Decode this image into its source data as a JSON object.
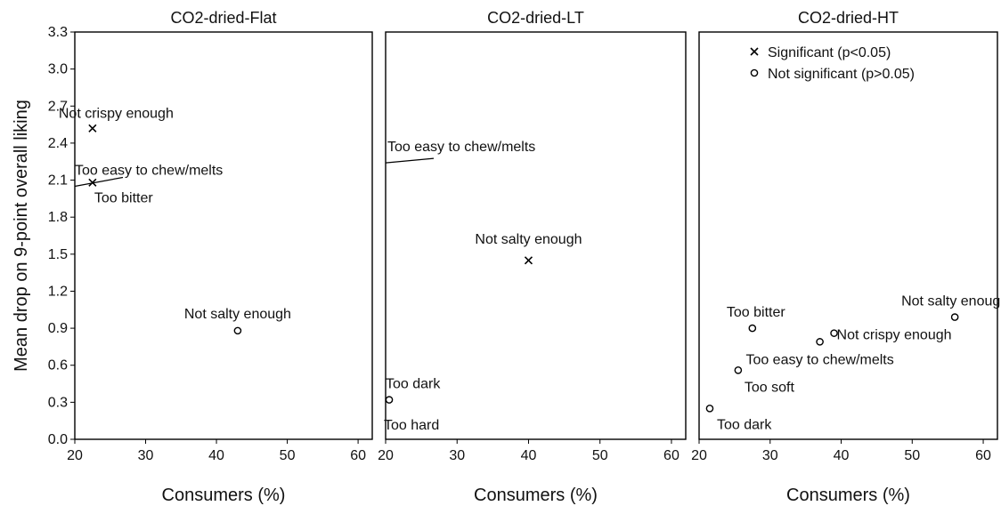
{
  "chart_data": {
    "type": "scatter",
    "ylabel": "Mean drop on 9-point overall liking",
    "ylim": [
      0,
      3.3
    ],
    "yticks": [
      0,
      0.3,
      0.6,
      0.9,
      1.2,
      1.5,
      1.8,
      2.1,
      2.4,
      2.7,
      3.0,
      3.3
    ],
    "ytick_labels": [
      "0.0",
      "0.3",
      "0.6",
      "0.9",
      "1.2",
      "1.5",
      "1.8",
      "2.1",
      "2.4",
      "2.7",
      "3.0",
      "3.3"
    ],
    "xlim": [
      20,
      62
    ],
    "xticks": [
      20,
      30,
      40,
      50,
      60
    ],
    "xtick_labels": [
      "20",
      "30",
      "40",
      "50",
      "60"
    ],
    "legend": {
      "placement": "top-left of third panel",
      "entries": [
        {
          "marker": "x",
          "label": "Significant (p<0.05)"
        },
        {
          "marker": "o",
          "label": "Not significant (p>0.05)"
        }
      ]
    },
    "panels": [
      {
        "title": "CO2-dried-Flat",
        "xlabel": "Consumers (%)",
        "points": [
          {
            "label": "Not crispy enough",
            "x": 22.5,
            "y": 2.52,
            "significant": true
          },
          {
            "label": "Too easy to chew/melts",
            "x": 20.0,
            "y": 2.05,
            "significant": false
          },
          {
            "label": "Too bitter",
            "x": 22.5,
            "y": 2.08,
            "significant": true
          },
          {
            "label": "Not salty enough",
            "x": 43.0,
            "y": 0.88,
            "significant": false
          }
        ]
      },
      {
        "title": "CO2-dried-LT",
        "xlabel": "Consumers (%)",
        "points": [
          {
            "label": "Too easy to chew/melts",
            "x": 20.0,
            "y": 2.24,
            "significant": false
          },
          {
            "label": "Not salty enough",
            "x": 40.0,
            "y": 1.45,
            "significant": true
          },
          {
            "label": "Too dark",
            "x": 20.5,
            "y": 0.32,
            "significant": false
          },
          {
            "label": "Too hard",
            "x": 20.0,
            "y": 0.0,
            "significant": false
          }
        ]
      },
      {
        "title": "CO2-dried-HT",
        "xlabel": "Consumers (%)",
        "points": [
          {
            "label": "Not salty enough",
            "x": 56.0,
            "y": 0.99,
            "significant": false
          },
          {
            "label": "Too bitter",
            "x": 27.5,
            "y": 0.9,
            "significant": false
          },
          {
            "label": "Not crispy enough",
            "x": 39.0,
            "y": 0.86,
            "significant": false
          },
          {
            "label": "Too easy to chew/melts",
            "x": 37.0,
            "y": 0.79,
            "significant": false
          },
          {
            "label": "Too soft",
            "x": 25.5,
            "y": 0.56,
            "significant": false
          },
          {
            "label": "Too dark",
            "x": 21.5,
            "y": 0.25,
            "significant": false
          }
        ]
      }
    ]
  }
}
